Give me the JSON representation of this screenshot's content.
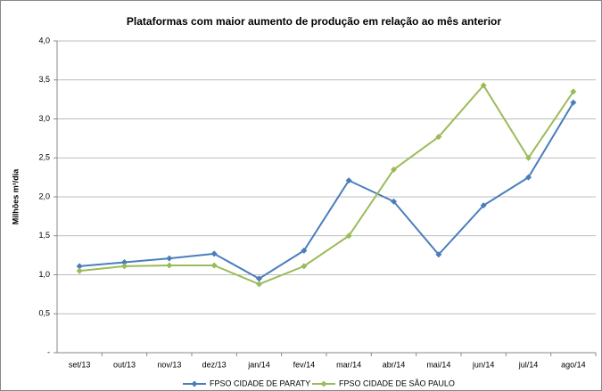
{
  "chart_data": {
    "type": "line",
    "title": "Plataformas com maior aumento de produção em relação ao mês anterior",
    "y_label": "Milhões m³/dia",
    "categories": [
      "set/13",
      "out/13",
      "nov/13",
      "dez/13",
      "jan/14",
      "fev/14",
      "mar/14",
      "abr/14",
      "mai/14",
      "jun/14",
      "jul/14",
      "ago/14"
    ],
    "series": [
      {
        "name": "FPSO CIDADE DE PARATY",
        "color": "#4a7ebb",
        "values": [
          1.11,
          1.16,
          1.21,
          1.27,
          0.95,
          1.31,
          2.21,
          1.94,
          1.26,
          1.89,
          2.25,
          3.21
        ]
      },
      {
        "name": "FPSO CIDADE DE SÃO PAULO",
        "color": "#9bbb59",
        "values": [
          1.05,
          1.11,
          1.12,
          1.12,
          0.88,
          1.11,
          1.5,
          2.35,
          2.77,
          3.43,
          2.5,
          3.35
        ]
      }
    ],
    "ylim": [
      0,
      4
    ],
    "yticks": [
      {
        "value": 0,
        "label": "-"
      },
      {
        "value": 0.5,
        "label": "0,5"
      },
      {
        "value": 1,
        "label": "1,0"
      },
      {
        "value": 1.5,
        "label": "1,5"
      },
      {
        "value": 2,
        "label": "2,0"
      },
      {
        "value": 2.5,
        "label": "2,5"
      },
      {
        "value": 3,
        "label": "3,0"
      },
      {
        "value": 3.5,
        "label": "3,5"
      },
      {
        "value": 4,
        "label": "4,0"
      }
    ],
    "grid": true,
    "legend": "bottom"
  }
}
